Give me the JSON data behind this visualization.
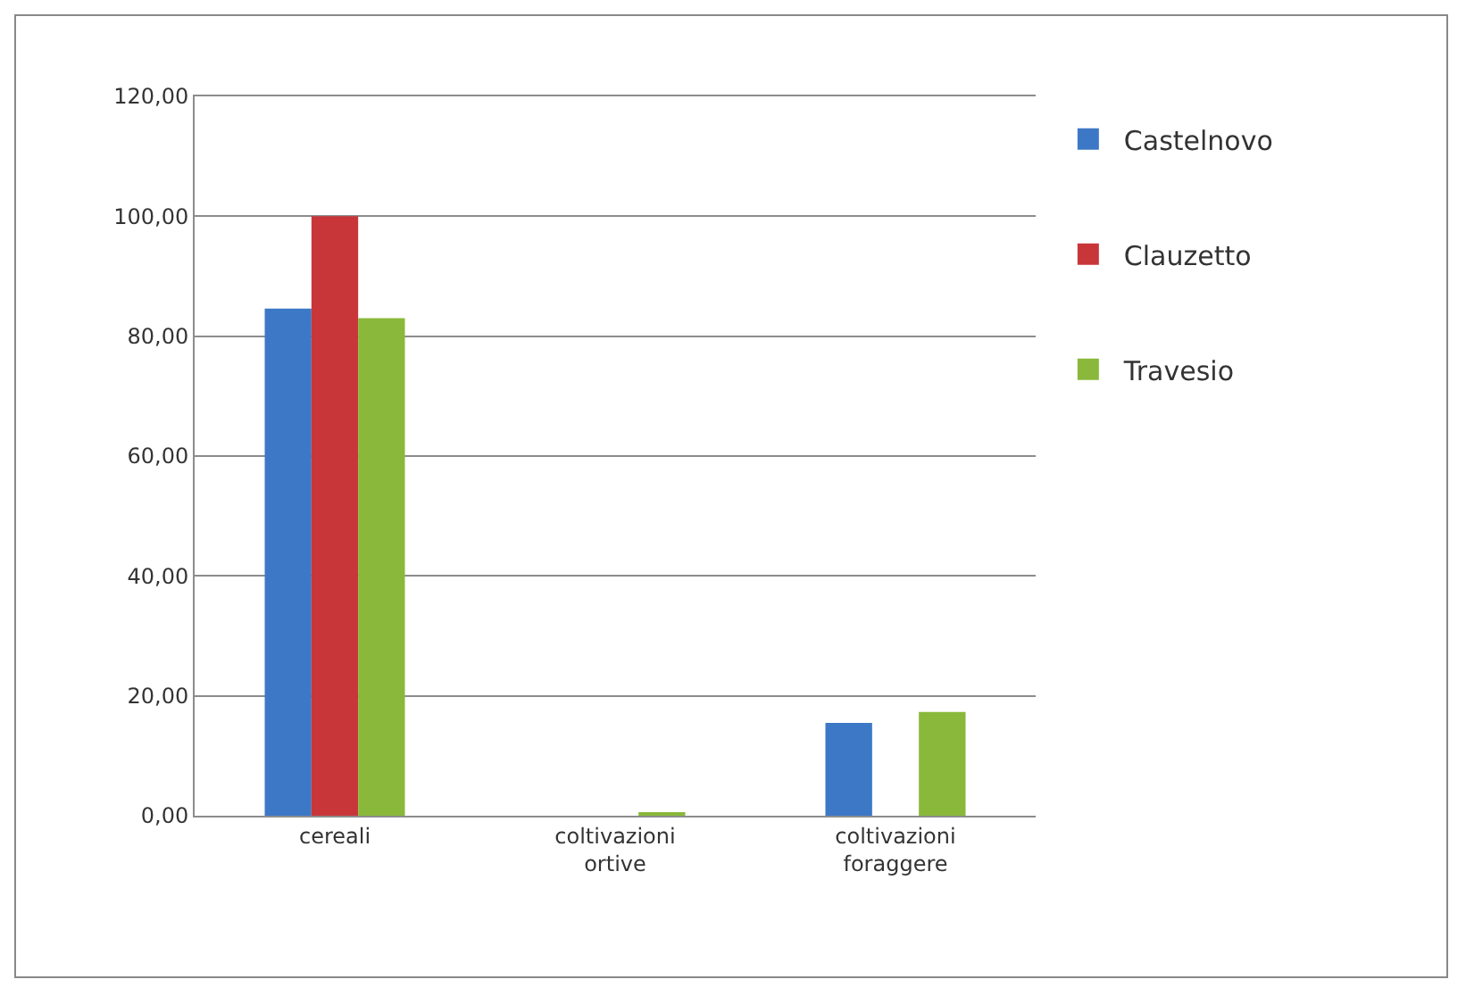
{
  "chart_data": {
    "type": "bar",
    "categories": [
      "cereali",
      "coltivazioni ortive",
      "coltivazioni foraggere"
    ],
    "series": [
      {
        "name": "Castelnovo",
        "color": "#3d78c6",
        "values": [
          84.6,
          0,
          15.5
        ]
      },
      {
        "name": "Clauzetto",
        "color": "#c8363a",
        "values": [
          100,
          0,
          0
        ]
      },
      {
        "name": "Travesio",
        "color": "#8ab83a",
        "values": [
          83.0,
          0.3,
          17.3
        ]
      }
    ],
    "ylim": [
      0,
      120
    ],
    "yticks": [
      {
        "value": 0,
        "label": "0,00"
      },
      {
        "value": 20,
        "label": "20,00"
      },
      {
        "value": 40,
        "label": "40,00"
      },
      {
        "value": 60,
        "label": "60,00"
      },
      {
        "value": 80,
        "label": "80,00"
      },
      {
        "value": 100,
        "label": "100,00"
      },
      {
        "value": 120,
        "label": "120,00"
      }
    ],
    "grid": "y",
    "legend": "right"
  }
}
